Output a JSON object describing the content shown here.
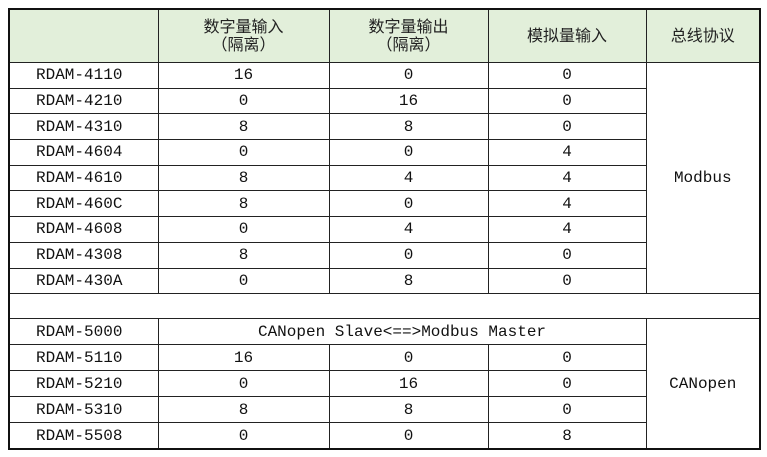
{
  "colors": {
    "header_bg": "#e2efda",
    "border": "#222222"
  },
  "headers": [
    {
      "line1": "",
      "line2": ""
    },
    {
      "line1": "数字量输入",
      "line2": "（隔离）"
    },
    {
      "line1": "数字量输出",
      "line2": "（隔离）"
    },
    {
      "line1": "模拟量输入",
      "line2": ""
    },
    {
      "line1": "总线协议",
      "line2": ""
    }
  ],
  "groups": [
    {
      "protocol": "Modbus",
      "rows": [
        {
          "model": "RDAM-4110",
          "di": "16",
          "do": "0",
          "ai": "0"
        },
        {
          "model": "RDAM-4210",
          "di": "0",
          "do": "16",
          "ai": "0"
        },
        {
          "model": "RDAM-4310",
          "di": "8",
          "do": "8",
          "ai": "0"
        },
        {
          "model": "RDAM-4604",
          "di": "0",
          "do": "0",
          "ai": "4"
        },
        {
          "model": "RDAM-4610",
          "di": "8",
          "do": "4",
          "ai": "4"
        },
        {
          "model": "RDAM-460C",
          "di": "8",
          "do": "0",
          "ai": "4"
        },
        {
          "model": "RDAM-4608",
          "di": "0",
          "do": "4",
          "ai": "4"
        },
        {
          "model": "RDAM-4308",
          "di": "8",
          "do": "0",
          "ai": "0"
        },
        {
          "model": "RDAM-430A",
          "di": "0",
          "do": "8",
          "ai": "0"
        }
      ]
    },
    {
      "protocol": "CANopen",
      "rows": [
        {
          "model": "RDAM-5000",
          "span": "CANopen Slave<==>Modbus Master"
        },
        {
          "model": "RDAM-5110",
          "di": "16",
          "do": "0",
          "ai": "0"
        },
        {
          "model": "RDAM-5210",
          "di": "0",
          "do": "16",
          "ai": "0"
        },
        {
          "model": "RDAM-5310",
          "di": "8",
          "do": "8",
          "ai": "0"
        },
        {
          "model": "RDAM-5508",
          "di": "0",
          "do": "0",
          "ai": "8"
        }
      ]
    }
  ]
}
